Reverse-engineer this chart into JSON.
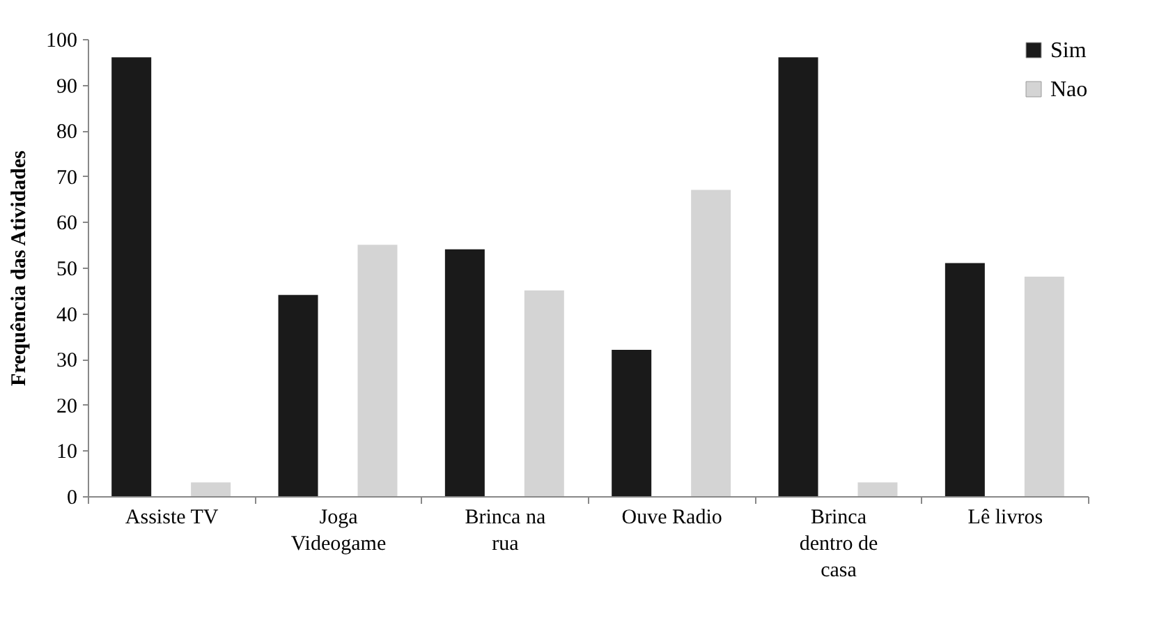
{
  "chart_data": {
    "type": "bar",
    "ylabel": "Frequência das  Atividades",
    "categories": [
      "Assiste TV",
      "Joga Videogame",
      "Brinca na rua",
      "Ouve Radio",
      "Brinca dentro de casa",
      "Lê livros"
    ],
    "series": [
      {
        "name": "Sim",
        "color": "#1a1a1a",
        "values": [
          96,
          44,
          54,
          32,
          96,
          51
        ]
      },
      {
        "name": "Nao",
        "color": "#d4d4d4",
        "values": [
          3,
          55,
          45,
          67,
          3,
          48
        ]
      }
    ],
    "ylim": [
      0,
      100
    ],
    "yticks": [
      0,
      10,
      20,
      30,
      40,
      50,
      60,
      70,
      80,
      90,
      100
    ],
    "grid": false,
    "legend": "top right"
  }
}
